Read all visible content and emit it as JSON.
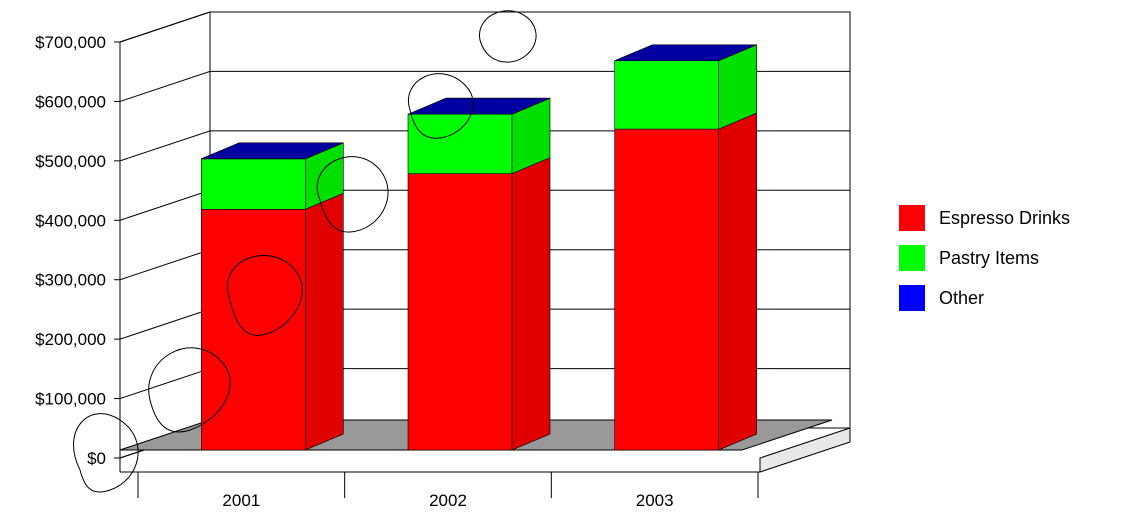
{
  "chart_data": {
    "type": "bar",
    "stacked": true,
    "three_d": true,
    "categories": [
      "2001",
      "2002",
      "2003"
    ],
    "series": [
      {
        "name": "Espresso Drinks",
        "color": "#ff0000",
        "values": [
          405000,
          465000,
          540000
        ]
      },
      {
        "name": "Pastry Items",
        "color": "#00ff00",
        "values": [
          85000,
          100000,
          115000
        ]
      },
      {
        "name": "Other",
        "color": "#0000ff",
        "values": [
          0,
          0,
          0
        ]
      }
    ],
    "y_ticks": [
      "$0",
      "$100,000",
      "$200,000",
      "$300,000",
      "$400,000",
      "$500,000",
      "$600,000",
      "$700,000"
    ],
    "ylim": [
      0,
      700000
    ],
    "grid": true,
    "legend_position": "right",
    "title": "",
    "xlabel": "",
    "ylabel": ""
  }
}
